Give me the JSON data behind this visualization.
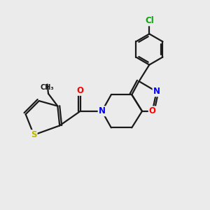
{
  "bg_color": "#ebebeb",
  "bond_color": "#1a1a1a",
  "bond_width": 1.6,
  "atom_colors": {
    "S": "#b8b800",
    "N": "#0000ff",
    "O": "#ff0000",
    "Cl": "#00aa00",
    "C": "#1a1a1a"
  },
  "font_size_atoms": 8.5,
  "figsize": [
    3.0,
    3.0
  ],
  "dpi": 100
}
